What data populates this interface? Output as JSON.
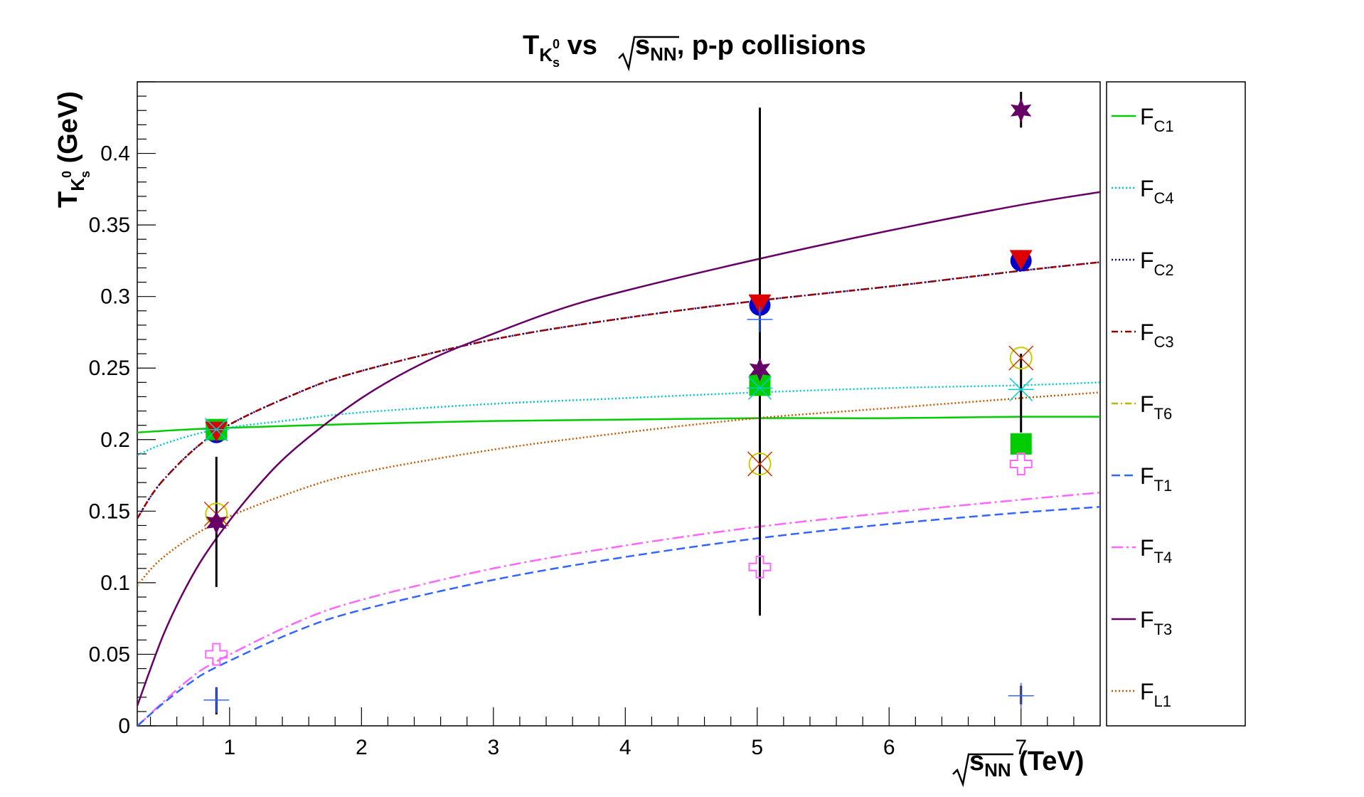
{
  "chart_data": {
    "type": "scatter",
    "title": {
      "main": "T",
      "sub": "K",
      "subsub": "s",
      "sup": "0",
      "mid": " vs ",
      "rad": "s",
      "radsub": "NN",
      "tail": ", p-p collisions"
    },
    "xlabel": {
      "rad": "s",
      "radsub": "NN",
      "unit": " (TeV)"
    },
    "ylabel": {
      "main": "T",
      "sub": "K",
      "subsub": "s",
      "sup": "0",
      "unit": " (GeV)"
    },
    "xlim": [
      0.3,
      7.6
    ],
    "ylim": [
      0,
      0.45
    ],
    "x_ticks": [
      "1",
      "2",
      "3",
      "4",
      "5",
      "6",
      "7"
    ],
    "y_ticks": [
      "0",
      "0.05",
      "0.1",
      "0.15",
      "0.2",
      "0.25",
      "0.3",
      "0.35",
      "0.4"
    ],
    "legend_position": "right",
    "legend": [
      {
        "name": "F",
        "sub": "C1",
        "color": "#00cc00",
        "dash": "solid"
      },
      {
        "name": "F",
        "sub": "C4",
        "color": "#00c8c8",
        "dash": "dotted"
      },
      {
        "name": "F",
        "sub": "C2",
        "color": "#000099",
        "dash": "dotted"
      },
      {
        "name": "F",
        "sub": "C3",
        "color": "#990000",
        "dash": "dashdot"
      },
      {
        "name": "F",
        "sub": "T6",
        "color": "#b8b800",
        "dash": "dashdot"
      },
      {
        "name": "F",
        "sub": "T1",
        "color": "#3366ff",
        "dash": "dashed"
      },
      {
        "name": "F",
        "sub": "T4",
        "color": "#ff66ff",
        "dash": "longdashdot"
      },
      {
        "name": "F",
        "sub": "T3",
        "color": "#660066",
        "dash": "solid"
      },
      {
        "name": "F",
        "sub": "L1",
        "color": "#cc5500",
        "dash": "dotted"
      }
    ],
    "curves": [
      {
        "name": "C1",
        "color": "#00cc00",
        "dash": "solid",
        "x": [
          0.3,
          0.9,
          2,
          3,
          4,
          5,
          6,
          7,
          7.6
        ],
        "y": [
          0.205,
          0.208,
          0.211,
          0.213,
          0.214,
          0.215,
          0.215,
          0.216,
          0.216
        ]
      },
      {
        "name": "C4",
        "color": "#00c8c8",
        "dash": "dotted",
        "x": [
          0.3,
          0.5,
          0.9,
          1.5,
          2,
          3,
          4,
          5,
          6,
          7,
          7.6
        ],
        "y": [
          0.189,
          0.197,
          0.207,
          0.214,
          0.219,
          0.225,
          0.229,
          0.233,
          0.236,
          0.238,
          0.24
        ]
      },
      {
        "name": "C2",
        "color": "#000099",
        "dash": "dotted",
        "x": [
          0.3,
          0.5,
          0.9,
          1.5,
          2,
          3,
          4,
          5,
          6,
          7,
          7.6
        ],
        "y": [
          0.145,
          0.172,
          0.205,
          0.232,
          0.248,
          0.27,
          0.285,
          0.297,
          0.307,
          0.318,
          0.324
        ]
      },
      {
        "name": "C3",
        "color": "#990000",
        "dash": "dashdot",
        "x": [
          0.3,
          0.5,
          0.9,
          1.5,
          2,
          3,
          4,
          5,
          6,
          7,
          7.6
        ],
        "y": [
          0.145,
          0.172,
          0.205,
          0.232,
          0.248,
          0.27,
          0.285,
          0.297,
          0.307,
          0.318,
          0.324
        ]
      },
      {
        "name": "L1",
        "color": "#cc5500",
        "dash": "dotted",
        "x": [
          0.3,
          0.5,
          0.9,
          1.5,
          2,
          3,
          4,
          5,
          6,
          7,
          7.6
        ],
        "y": [
          0.098,
          0.118,
          0.142,
          0.164,
          0.177,
          0.193,
          0.205,
          0.215,
          0.222,
          0.229,
          0.233
        ]
      },
      {
        "name": "T4",
        "color": "#ff66ff",
        "dash": "longdashdot",
        "x": [
          0.3,
          0.35,
          0.5,
          0.7,
          0.9,
          1.5,
          2,
          3,
          4,
          5,
          6,
          7,
          7.6
        ],
        "y": [
          0.0,
          0.004,
          0.017,
          0.033,
          0.045,
          0.072,
          0.088,
          0.11,
          0.126,
          0.139,
          0.149,
          0.158,
          0.163
        ]
      },
      {
        "name": "T1",
        "color": "#3366ff",
        "dash": "dashed",
        "x": [
          0.3,
          0.35,
          0.5,
          0.7,
          0.9,
          1.5,
          2,
          3,
          4,
          5,
          6,
          7,
          7.6
        ],
        "y": [
          0.0,
          0.004,
          0.016,
          0.03,
          0.041,
          0.066,
          0.081,
          0.102,
          0.118,
          0.131,
          0.141,
          0.149,
          0.153
        ]
      },
      {
        "name": "T3",
        "color": "#660066",
        "dash": "solid",
        "x": [
          0.3,
          0.5,
          0.7,
          0.9,
          1.2,
          1.5,
          2,
          2.5,
          3,
          3.5,
          4,
          5,
          6,
          7,
          7.6
        ],
        "y": [
          0.014,
          0.064,
          0.102,
          0.131,
          0.166,
          0.194,
          0.229,
          0.255,
          0.274,
          0.291,
          0.304,
          0.326,
          0.346,
          0.364,
          0.373
        ]
      }
    ],
    "errorbars": [
      {
        "x": 0.9,
        "y": 0.142,
        "ylow": 0.097,
        "yhigh": 0.188
      },
      {
        "x": 0.9,
        "y": 0.018,
        "ylow": 0.008,
        "yhigh": 0.027
      },
      {
        "x": 5.02,
        "y": 0.255,
        "ylow": 0.077,
        "yhigh": 0.432
      },
      {
        "x": 7.0,
        "y": 0.43,
        "ylow": 0.418,
        "yhigh": 0.443
      },
      {
        "x": 7.0,
        "y": 0.22,
        "ylow": 0.205,
        "yhigh": 0.26
      },
      {
        "x": 7.0,
        "y": 0.02,
        "ylow": 0.015,
        "yhigh": 0.028
      }
    ],
    "points": [
      {
        "x": 0.9,
        "y": 0.205,
        "marker": "circle",
        "color": "#0000cc"
      },
      {
        "x": 0.9,
        "y": 0.207,
        "marker": "square",
        "color": "#00cc00"
      },
      {
        "x": 0.9,
        "y": 0.206,
        "marker": "triangle-down",
        "color": "#dd0000"
      },
      {
        "x": 0.9,
        "y": 0.207,
        "marker": "asterisk",
        "color": "#00cccc"
      },
      {
        "x": 0.9,
        "y": 0.148,
        "marker": "circle-open",
        "color": "#cccc00"
      },
      {
        "x": 0.9,
        "y": 0.148,
        "marker": "x",
        "color": "#cc3300"
      },
      {
        "x": 0.9,
        "y": 0.142,
        "marker": "star",
        "color": "#660066"
      },
      {
        "x": 0.9,
        "y": 0.05,
        "marker": "cross-open",
        "color": "#ff66ff"
      },
      {
        "x": 0.9,
        "y": 0.018,
        "marker": "plus",
        "color": "#3366ff"
      },
      {
        "x": 5.02,
        "y": 0.294,
        "marker": "circle",
        "color": "#0000cc"
      },
      {
        "x": 5.02,
        "y": 0.295,
        "marker": "triangle-down",
        "color": "#dd0000"
      },
      {
        "x": 5.02,
        "y": 0.284,
        "marker": "plus",
        "color": "#3366ff"
      },
      {
        "x": 5.02,
        "y": 0.238,
        "marker": "square",
        "color": "#00cc00"
      },
      {
        "x": 5.02,
        "y": 0.236,
        "marker": "asterisk",
        "color": "#00cccc"
      },
      {
        "x": 5.02,
        "y": 0.249,
        "marker": "star",
        "color": "#660066"
      },
      {
        "x": 5.02,
        "y": 0.183,
        "marker": "circle-open",
        "color": "#cccc00"
      },
      {
        "x": 5.02,
        "y": 0.183,
        "marker": "x",
        "color": "#cc3300"
      },
      {
        "x": 5.02,
        "y": 0.111,
        "marker": "cross-open",
        "color": "#ff66ff"
      },
      {
        "x": 7.0,
        "y": 0.43,
        "marker": "star",
        "color": "#660066"
      },
      {
        "x": 7.0,
        "y": 0.325,
        "marker": "circle",
        "color": "#0000cc"
      },
      {
        "x": 7.0,
        "y": 0.326,
        "marker": "triangle-down",
        "color": "#dd0000"
      },
      {
        "x": 7.0,
        "y": 0.257,
        "marker": "circle-open",
        "color": "#cccc00"
      },
      {
        "x": 7.0,
        "y": 0.257,
        "marker": "x",
        "color": "#cc3300"
      },
      {
        "x": 7.0,
        "y": 0.235,
        "marker": "asterisk",
        "color": "#00cccc"
      },
      {
        "x": 7.0,
        "y": 0.197,
        "marker": "square",
        "color": "#00cc00"
      },
      {
        "x": 7.0,
        "y": 0.183,
        "marker": "cross-open",
        "color": "#ff66ff"
      },
      {
        "x": 7.0,
        "y": 0.021,
        "marker": "plus",
        "color": "#3366ff"
      }
    ]
  }
}
